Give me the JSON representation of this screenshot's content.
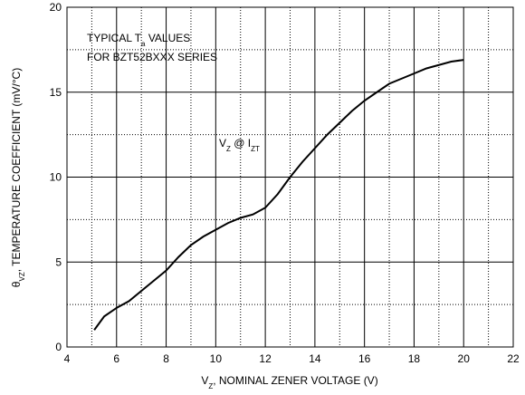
{
  "chart_data": {
    "type": "line",
    "xlabel": [
      "V",
      "Z",
      ", NOMINAL ZENER VOLTAGE (V)"
    ],
    "ylabel": [
      "θ",
      "VZ",
      ", TEMPERATURE COEFFICIENT (mV/°C)"
    ],
    "annotations": [
      [
        "TYPICAL T",
        "a",
        " VALUES"
      ],
      [
        "FOR BZT52BXXX SERIES"
      ],
      [
        "V",
        "Z",
        " @ I",
        "ZT"
      ]
    ],
    "xlim": [
      4,
      22
    ],
    "ylim": [
      0,
      20
    ],
    "xticks": [
      4,
      6,
      8,
      10,
      12,
      14,
      16,
      18,
      20,
      22
    ],
    "yticks": [
      0,
      5,
      10,
      15,
      20
    ],
    "xminor": [
      5,
      7,
      9,
      11,
      13,
      15,
      17,
      19,
      21
    ],
    "yminor": [
      2.5,
      7.5,
      12.5,
      17.5
    ],
    "grid": true,
    "series": [
      {
        "color": "#000000",
        "x": [
          5.1,
          5.5,
          6,
          6.5,
          7,
          7.5,
          8,
          8.5,
          9,
          9.5,
          10,
          10.5,
          11,
          11.5,
          12,
          12.5,
          13,
          13.5,
          14,
          14.5,
          15,
          15.5,
          16,
          16.5,
          17,
          17.5,
          18,
          18.5,
          19,
          19.5,
          20
        ],
        "values": [
          1.0,
          1.8,
          2.3,
          2.7,
          3.3,
          3.9,
          4.5,
          5.3,
          6.0,
          6.5,
          6.9,
          7.3,
          7.6,
          7.8,
          8.2,
          9.0,
          10.0,
          10.9,
          11.7,
          12.5,
          13.2,
          13.9,
          14.5,
          15.0,
          15.5,
          15.8,
          16.1,
          16.4,
          16.6,
          16.8,
          16.9
        ]
      }
    ]
  }
}
